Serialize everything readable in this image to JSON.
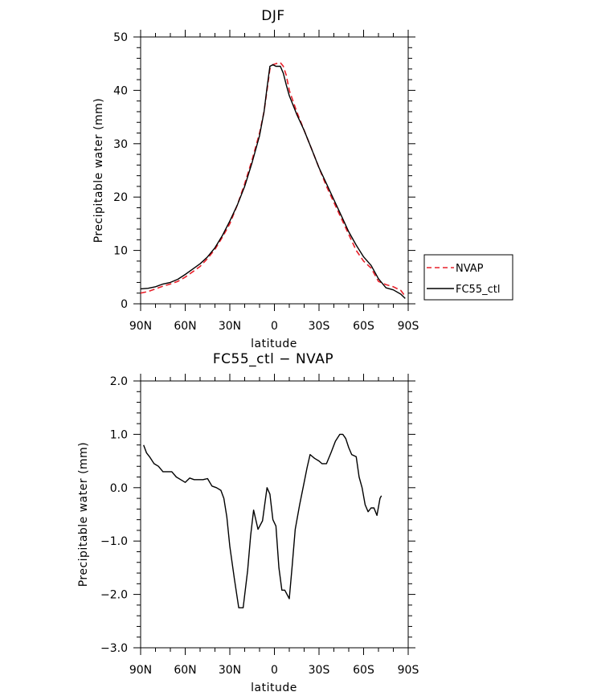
{
  "chart_data": [
    {
      "type": "line",
      "title": "DJF",
      "xlabel": "latitude",
      "ylabel": "Precipitable water (mm)",
      "xlim": [
        -90,
        90
      ],
      "ylim": [
        0,
        50
      ],
      "x_ticks": [
        -90,
        -60,
        -30,
        0,
        30,
        60,
        90
      ],
      "x_tick_labels": [
        "90N",
        "60N",
        "30N",
        "0",
        "30S",
        "60S",
        "90S"
      ],
      "y_ticks": [
        0,
        10,
        20,
        30,
        40,
        50
      ],
      "y_tick_labels": [
        "0",
        "10",
        "20",
        "30",
        "40",
        "50"
      ],
      "legend_position": "right",
      "series": [
        {
          "name": "NVAP",
          "color": "#e8202a",
          "style": "dashed",
          "points": [
            [
              -90,
              2
            ],
            [
              -85,
              2.3
            ],
            [
              -80,
              2.8
            ],
            [
              -75,
              3.3
            ],
            [
              -70,
              3.7
            ],
            [
              -65,
              4.2
            ],
            [
              -60,
              5
            ],
            [
              -55,
              6
            ],
            [
              -50,
              7
            ],
            [
              -45,
              8.5
            ],
            [
              -40,
              10.2
            ],
            [
              -35,
              12.5
            ],
            [
              -30,
              15
            ],
            [
              -25,
              18.5
            ],
            [
              -20,
              22.5
            ],
            [
              -15,
              27
            ],
            [
              -10,
              32
            ],
            [
              -7,
              36
            ],
            [
              -5,
              40
            ],
            [
              -3,
              44
            ],
            [
              -1,
              44.8
            ],
            [
              1,
              45
            ],
            [
              4,
              45.2
            ],
            [
              6,
              44.5
            ],
            [
              8,
              42.8
            ],
            [
              10,
              40
            ],
            [
              15,
              36
            ],
            [
              20,
              32.5
            ],
            [
              25,
              29
            ],
            [
              30,
              25.5
            ],
            [
              35,
              22
            ],
            [
              40,
              19
            ],
            [
              45,
              16
            ],
            [
              50,
              13
            ],
            [
              55,
              10
            ],
            [
              60,
              8
            ],
            [
              65,
              6.7
            ],
            [
              70,
              4.2
            ],
            [
              75,
              3.6
            ],
            [
              80,
              3.2
            ],
            [
              85,
              2.5
            ],
            [
              88,
              1.4
            ]
          ]
        },
        {
          "name": "FC55_ctl",
          "color": "#000000",
          "style": "solid",
          "points": [
            [
              -90,
              2.8
            ],
            [
              -85,
              2.9
            ],
            [
              -80,
              3.2
            ],
            [
              -75,
              3.7
            ],
            [
              -70,
              4
            ],
            [
              -65,
              4.6
            ],
            [
              -60,
              5.5
            ],
            [
              -55,
              6.5
            ],
            [
              -50,
              7.5
            ],
            [
              -45,
              8.8
            ],
            [
              -40,
              10.5
            ],
            [
              -35,
              12.8
            ],
            [
              -30,
              15.5
            ],
            [
              -25,
              18.5
            ],
            [
              -20,
              22
            ],
            [
              -15,
              26.5
            ],
            [
              -10,
              31.5
            ],
            [
              -7,
              36
            ],
            [
              -5,
              40.5
            ],
            [
              -3,
              44.5
            ],
            [
              -1,
              44.8
            ],
            [
              1,
              44.5
            ],
            [
              4,
              44.5
            ],
            [
              6,
              43.2
            ],
            [
              8,
              41
            ],
            [
              10,
              39
            ],
            [
              15,
              35.5
            ],
            [
              20,
              32.5
            ],
            [
              25,
              29
            ],
            [
              30,
              25.5
            ],
            [
              35,
              22.5
            ],
            [
              40,
              19.5
            ],
            [
              45,
              16.5
            ],
            [
              50,
              13.5
            ],
            [
              55,
              11
            ],
            [
              60,
              8.8
            ],
            [
              65,
              7.2
            ],
            [
              70,
              4.7
            ],
            [
              75,
              3
            ],
            [
              80,
              2.6
            ],
            [
              85,
              1.8
            ],
            [
              88,
              1
            ]
          ]
        }
      ]
    },
    {
      "type": "line",
      "title": "FC55_ctl − NVAP",
      "xlabel": "latitude",
      "ylabel": "Precipitable water (mm)",
      "xlim": [
        -90,
        90
      ],
      "ylim": [
        -3,
        2
      ],
      "x_ticks": [
        -90,
        -60,
        -30,
        0,
        30,
        60,
        90
      ],
      "x_tick_labels": [
        "90N",
        "60N",
        "30N",
        "0",
        "30S",
        "60S",
        "90S"
      ],
      "y_ticks": [
        -3,
        -2,
        -1,
        0,
        1,
        2
      ],
      "y_tick_labels": [
        "−3.0",
        "−2.0",
        "−1.0",
        "0.0",
        "1.0",
        "2.0"
      ],
      "series": [
        {
          "color": "#000000",
          "style": "solid",
          "points": [
            [
              -88,
              0.8
            ],
            [
              -86,
              0.65
            ],
            [
              -84,
              0.58
            ],
            [
              -81,
              0.45
            ],
            [
              -78,
              0.4
            ],
            [
              -75,
              0.3
            ],
            [
              -72,
              0.3
            ],
            [
              -69,
              0.3
            ],
            [
              -66,
              0.2
            ],
            [
              -63,
              0.15
            ],
            [
              -60,
              0.1
            ],
            [
              -57,
              0.18
            ],
            [
              -54,
              0.15
            ],
            [
              -51,
              0.15
            ],
            [
              -48,
              0.15
            ],
            [
              -45,
              0.17
            ],
            [
              -42,
              0.03
            ],
            [
              -39,
              0
            ],
            [
              -36,
              -0.05
            ],
            [
              -34,
              -0.2
            ],
            [
              -32,
              -0.55
            ],
            [
              -30,
              -1.1
            ],
            [
              -27,
              -1.7
            ],
            [
              -24,
              -2.25
            ],
            [
              -21,
              -2.25
            ],
            [
              -18,
              -1.55
            ],
            [
              -16,
              -0.9
            ],
            [
              -14,
              -0.42
            ],
            [
              -11,
              -0.78
            ],
            [
              -8,
              -0.62
            ],
            [
              -5,
              0
            ],
            [
              -3,
              -0.12
            ],
            [
              -1,
              -0.6
            ],
            [
              1,
              -0.72
            ],
            [
              3,
              -1.5
            ],
            [
              5,
              -1.92
            ],
            [
              7,
              -1.92
            ],
            [
              10,
              -2.08
            ],
            [
              12,
              -1.45
            ],
            [
              14,
              -0.78
            ],
            [
              17,
              -0.32
            ],
            [
              20,
              0.1
            ],
            [
              22,
              0.38
            ],
            [
              24,
              0.62
            ],
            [
              27,
              0.55
            ],
            [
              30,
              0.5
            ],
            [
              32,
              0.45
            ],
            [
              35,
              0.45
            ],
            [
              38,
              0.65
            ],
            [
              41,
              0.87
            ],
            [
              44,
              1.0
            ],
            [
              46,
              1.0
            ],
            [
              48,
              0.92
            ],
            [
              50,
              0.75
            ],
            [
              52,
              0.62
            ],
            [
              55,
              0.58
            ],
            [
              57,
              0.2
            ],
            [
              59,
              0
            ],
            [
              61,
              -0.32
            ],
            [
              63,
              -0.45
            ],
            [
              65,
              -0.38
            ],
            [
              67,
              -0.38
            ],
            [
              69,
              -0.52
            ],
            [
              71,
              -0.2
            ],
            [
              72,
              -0.15
            ]
          ]
        }
      ]
    }
  ]
}
